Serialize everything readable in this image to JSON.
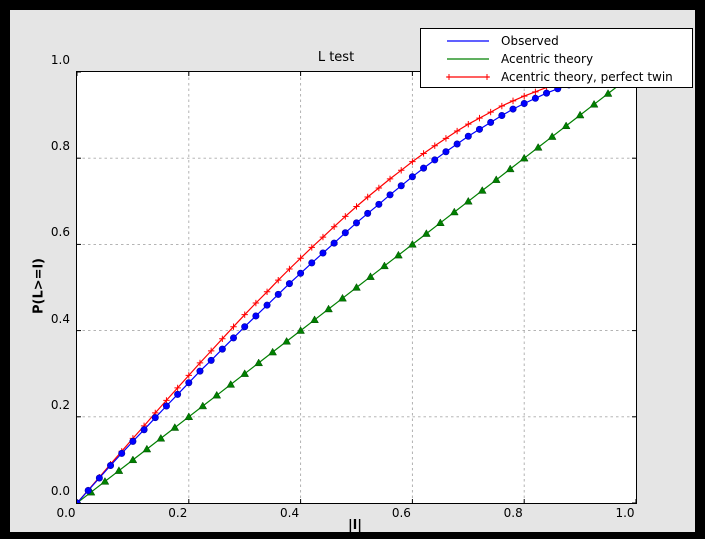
{
  "window": {
    "outer_bg": "#000000",
    "figure_bg": "#e5e5e5",
    "axes_bg": "#ffffff",
    "grid_color": "#aaaaaa",
    "axis_color": "#000000"
  },
  "chart_data": {
    "type": "line",
    "title": "L test",
    "xlabel": "|l|",
    "ylabel": "P(L>=l)",
    "xlim": [
      0,
      1
    ],
    "ylim": [
      0,
      1
    ],
    "x_ticks": [
      "0.0",
      "0.2",
      "0.4",
      "0.6",
      "0.8",
      "1.0"
    ],
    "y_ticks": [
      "0.0",
      "0.2",
      "0.4",
      "0.6",
      "0.8",
      "1.0"
    ],
    "grid": true,
    "grid_style": "dashed",
    "legend_position": "upper right",
    "series": [
      {
        "name": "Observed",
        "color": "#0000ff",
        "marker": "circle",
        "legend_markers": false,
        "x": [
          0,
          0.02,
          0.04,
          0.06,
          0.08,
          0.1,
          0.12,
          0.14,
          0.16,
          0.18,
          0.2,
          0.22,
          0.24,
          0.26,
          0.28,
          0.3,
          0.32,
          0.34,
          0.36,
          0.38,
          0.4,
          0.42,
          0.44,
          0.46,
          0.48,
          0.5,
          0.52,
          0.54,
          0.56,
          0.58,
          0.6,
          0.62,
          0.64,
          0.66,
          0.68,
          0.7,
          0.72,
          0.74,
          0.76,
          0.78,
          0.8,
          0.82,
          0.84,
          0.86,
          0.88,
          0.9,
          0.92,
          0.94,
          0.96,
          0.98,
          1
        ],
        "y": [
          0,
          0.029,
          0.058,
          0.087,
          0.115,
          0.143,
          0.17,
          0.198,
          0.225,
          0.252,
          0.279,
          0.306,
          0.331,
          0.357,
          0.383,
          0.409,
          0.434,
          0.459,
          0.484,
          0.509,
          0.533,
          0.557,
          0.58,
          0.603,
          0.627,
          0.65,
          0.672,
          0.693,
          0.715,
          0.736,
          0.757,
          0.777,
          0.796,
          0.815,
          0.833,
          0.851,
          0.867,
          0.883,
          0.899,
          0.914,
          0.927,
          0.939,
          0.951,
          0.961,
          0.97,
          0.978,
          0.986,
          0.992,
          0.996,
          0.998,
          1
        ]
      },
      {
        "name": "Acentric theory",
        "color": "#008000",
        "marker": "triangle",
        "legend_markers": false,
        "x": [
          0,
          0.025,
          0.05,
          0.075,
          0.1,
          0.125,
          0.15,
          0.175,
          0.2,
          0.225,
          0.25,
          0.275,
          0.3,
          0.325,
          0.35,
          0.375,
          0.4,
          0.425,
          0.45,
          0.475,
          0.5,
          0.525,
          0.55,
          0.575,
          0.6,
          0.625,
          0.65,
          0.675,
          0.7,
          0.725,
          0.75,
          0.775,
          0.8,
          0.825,
          0.85,
          0.875,
          0.9,
          0.925,
          0.95,
          0.975,
          1
        ],
        "y": [
          0,
          0.025,
          0.05,
          0.075,
          0.1,
          0.125,
          0.15,
          0.175,
          0.2,
          0.225,
          0.25,
          0.275,
          0.3,
          0.325,
          0.35,
          0.375,
          0.4,
          0.425,
          0.45,
          0.475,
          0.5,
          0.525,
          0.55,
          0.575,
          0.6,
          0.625,
          0.65,
          0.675,
          0.7,
          0.725,
          0.75,
          0.775,
          0.8,
          0.825,
          0.85,
          0.875,
          0.9,
          0.925,
          0.95,
          0.975,
          1
        ]
      },
      {
        "name": "Acentric theory, perfect twin",
        "color": "#ff0000",
        "marker": "plus",
        "legend_markers": true,
        "x": [
          0,
          0.02,
          0.04,
          0.06,
          0.08,
          0.1,
          0.12,
          0.14,
          0.16,
          0.18,
          0.2,
          0.22,
          0.24,
          0.26,
          0.28,
          0.3,
          0.32,
          0.34,
          0.36,
          0.38,
          0.4,
          0.42,
          0.44,
          0.46,
          0.48,
          0.5,
          0.52,
          0.54,
          0.56,
          0.58,
          0.6,
          0.62,
          0.64,
          0.66,
          0.68,
          0.7,
          0.72,
          0.74,
          0.76,
          0.78,
          0.8,
          0.82,
          0.84,
          0.86,
          0.88,
          0.9,
          0.92,
          0.94,
          0.96,
          0.98,
          1
        ],
        "y": [
          0,
          0.03,
          0.06,
          0.09,
          0.12,
          0.15,
          0.179,
          0.209,
          0.238,
          0.267,
          0.296,
          0.325,
          0.353,
          0.381,
          0.409,
          0.437,
          0.464,
          0.49,
          0.517,
          0.543,
          0.568,
          0.593,
          0.617,
          0.641,
          0.665,
          0.688,
          0.71,
          0.731,
          0.752,
          0.772,
          0.792,
          0.811,
          0.829,
          0.846,
          0.863,
          0.879,
          0.893,
          0.907,
          0.921,
          0.933,
          0.944,
          0.954,
          0.964,
          0.972,
          0.979,
          0.985,
          0.991,
          0.995,
          0.998,
          0.999,
          1
        ]
      }
    ]
  }
}
